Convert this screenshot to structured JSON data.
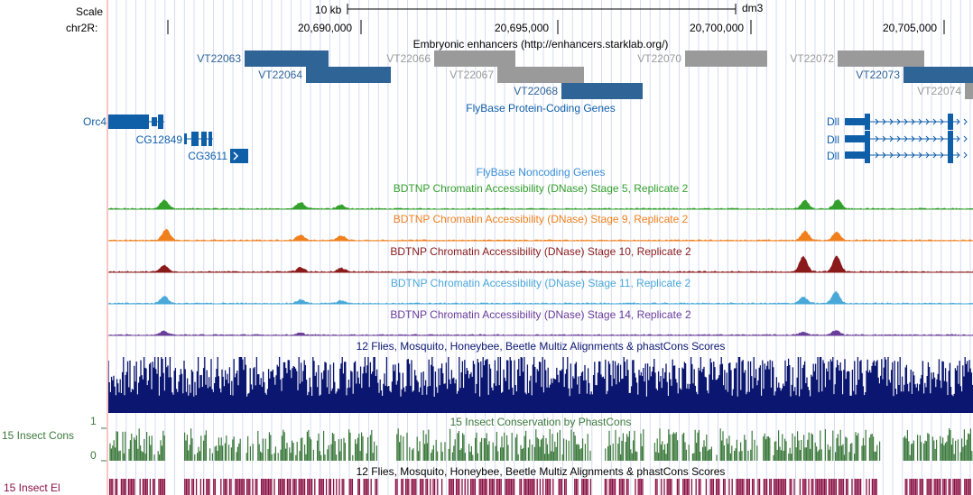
{
  "colors": {
    "enhancer_dark": "#2f6497",
    "enhancer_light": "#9a9a9a",
    "gene": "#0f5ea8",
    "noncoding": "#3b8fd8",
    "stage5": "#33a02c",
    "stage9": "#f0801e",
    "stage10": "#8b1a1a",
    "stage11": "#4aa8d8",
    "stage14": "#6a3d9a",
    "multiz": "#0a1670",
    "phastcons": "#3c7a3c",
    "elements": "#8b1043",
    "grid": "#c8d0f0"
  },
  "header": {
    "scale_label": "Scale",
    "scale_value": "10 kb",
    "assembly": "dm3",
    "chrom_label": "chr2R:",
    "ticks": [
      "20,690,000",
      "20,695,000",
      "20,700,000",
      "20,705,000"
    ]
  },
  "enhancers": {
    "title": "Embryonic enhancers (http://enhancers.starklab.org/)",
    "items": [
      {
        "id": "VT22063",
        "shade": "dark"
      },
      {
        "id": "VT22064",
        "shade": "dark"
      },
      {
        "id": "VT22066",
        "shade": "light"
      },
      {
        "id": "VT22067",
        "shade": "light"
      },
      {
        "id": "VT22068",
        "shade": "dark"
      },
      {
        "id": "VT22070",
        "shade": "light"
      },
      {
        "id": "VT22072",
        "shade": "light"
      },
      {
        "id": "VT22073",
        "shade": "dark"
      },
      {
        "id": "VT22074",
        "shade": "light"
      }
    ]
  },
  "genes": {
    "title": "FlyBase Protein-Coding Genes",
    "items": [
      "Orc4",
      "CG12849",
      "CG3611",
      "Dll",
      "Dll",
      "Dll"
    ]
  },
  "noncoding": {
    "title": "FlyBase Noncoding Genes"
  },
  "dnase": {
    "tracks": [
      {
        "title": "BDTNP Chromatin Accessibility (DNase) Stage 5, Replicate 2",
        "color_key": "stage5"
      },
      {
        "title": "BDTNP Chromatin Accessibility (DNase) Stage 9, Replicate 2",
        "color_key": "stage9"
      },
      {
        "title": "BDTNP Chromatin Accessibility (DNase) Stage 10, Replicate 2",
        "color_key": "stage10"
      },
      {
        "title": "BDTNP Chromatin Accessibility (DNase) Stage 11, Replicate 2",
        "color_key": "stage11"
      },
      {
        "title": "BDTNP Chromatin Accessibility (DNase) Stage 14, Replicate 2",
        "color_key": "stage14"
      }
    ]
  },
  "multiz": {
    "title": "12 Flies, Mosquito, Honeybee, Beetle Multiz Alignments & phastCons Scores"
  },
  "phastcons": {
    "title": "15 Insect Conservation by PhastCons",
    "side_label": "15 Insect Cons",
    "axis_max": "1",
    "axis_min": "0"
  },
  "elements": {
    "title": "12 Flies, Mosquito, Honeybee, Beetle Multiz Alignments & phastCons Scores",
    "side_label": "15 Insect El"
  }
}
